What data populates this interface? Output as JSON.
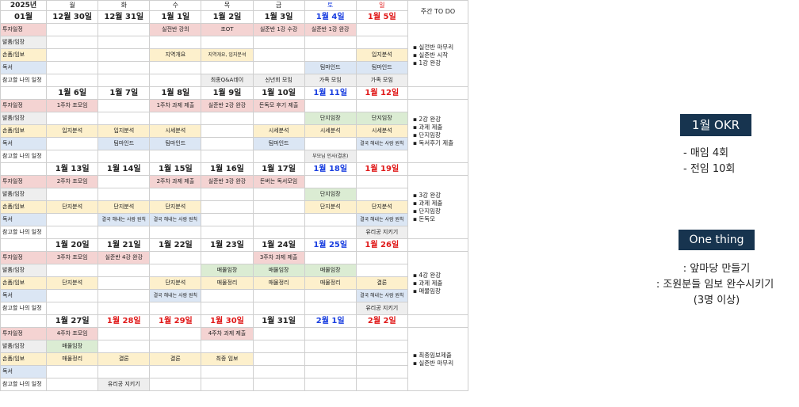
{
  "header": {
    "year": "2025년",
    "month": "01월",
    "weekdays": [
      "월",
      "화",
      "수",
      "목",
      "금",
      "토",
      "일"
    ],
    "todo_header": "주간 TO DO"
  },
  "row_labels": [
    "투자일정",
    "발품/임장",
    "손품/임보",
    "독서",
    "참고할 나의 일정"
  ],
  "weeks": [
    {
      "dates": [
        "12월 30일",
        "12월 31일",
        "1월 1일",
        "1월 2일",
        "1월 3일",
        "1월 4일",
        "1월 5일"
      ],
      "rows": [
        [
          "",
          "",
          "실전반 강의",
          "조OT",
          "실준반 1강 수강",
          "실준반 1강 완강",
          ""
        ],
        [
          "",
          "",
          "",
          "",
          "",
          "",
          ""
        ],
        [
          "",
          "",
          "지역개요",
          "지역개요, 입지분석",
          "",
          "",
          "입지분석"
        ],
        [
          "",
          "",
          "",
          "",
          "",
          "팀마인드",
          "팀마인드"
        ],
        [
          "",
          "",
          "",
          "최종Q&A데이",
          "신년회 모임",
          "가족 모임",
          "가족 모임"
        ]
      ],
      "todo": [
        "실전반 마무리",
        "실준반 시작",
        "1강 완강"
      ]
    },
    {
      "dates": [
        "1월 6일",
        "1월 7일",
        "1월 8일",
        "1월 9일",
        "1월 10일",
        "1월 11일",
        "1월 12일"
      ],
      "rows": [
        [
          "1주차 조모임",
          "",
          "1주차 과제 제출",
          "실준반 2강 완강",
          "돈독모 후기 제출",
          "",
          ""
        ],
        [
          "",
          "",
          "",
          "",
          "",
          "단지임장",
          "단지임장"
        ],
        [
          "입지분석",
          "입지분석",
          "시세분석",
          "",
          "시세분석",
          "시세분석",
          "시세분석"
        ],
        [
          "",
          "팀마인드",
          "팀마인드",
          "",
          "팀마인드",
          "",
          "결국 해내는 사람 원칙"
        ],
        [
          "",
          "",
          "",
          "",
          "",
          "부모님 인사(결혼)",
          ""
        ]
      ],
      "todo": [
        "2강 완강",
        "과제 제출",
        "단지임장",
        "독서후기 제출"
      ]
    },
    {
      "dates": [
        "1월 13일",
        "1월 14일",
        "1월 15일",
        "1월 16일",
        "1월 17일",
        "1월 18일",
        "1월 19일"
      ],
      "rows": [
        [
          "2주차 조모임",
          "",
          "2주차 과제 제출",
          "실준반 3강 완강",
          "돈버는 독서모임",
          "",
          ""
        ],
        [
          "",
          "",
          "",
          "",
          "",
          "단지임장",
          ""
        ],
        [
          "단지분석",
          "단지분석",
          "단지분석",
          "",
          "",
          "단지분석",
          "단지분석"
        ],
        [
          "",
          "결국 해내는 사람 원칙",
          "결국 해내는 사람 원칙",
          "",
          "",
          "",
          "결국 해내는 사람 원칙"
        ],
        [
          "",
          "",
          "",
          "",
          "",
          "",
          "유리공 지키기"
        ]
      ],
      "todo": [
        "3강 완강",
        "과제 제출",
        "단지임장",
        "돈독모"
      ]
    },
    {
      "dates": [
        "1월 20일",
        "1월 21일",
        "1월 22일",
        "1월 23일",
        "1월 24일",
        "1월 25일",
        "1월 26일"
      ],
      "rows": [
        [
          "3주차 조모임",
          "실준반 4강 완강",
          "",
          "",
          "3주차 과제 제출",
          "",
          ""
        ],
        [
          "",
          "",
          "",
          "매물임장",
          "매물임장",
          "매물임장",
          ""
        ],
        [
          "단지분석",
          "",
          "단지분석",
          "매물정리",
          "매물정리",
          "매물정리",
          "결론"
        ],
        [
          "",
          "",
          "결국 해내는 사람 원칙",
          "",
          "",
          "",
          "결국 해내는 사람 원칙"
        ],
        [
          "",
          "",
          "",
          "",
          "",
          "",
          "유리공 지키기"
        ]
      ],
      "todo": [
        "4강 완강",
        "과제 제출",
        "매물임장"
      ]
    },
    {
      "dates": [
        "1월 27일",
        "1월 28일",
        "1월 29일",
        "1월 30일",
        "1월 31일",
        "2월 1일",
        "2월 2일"
      ],
      "rows": [
        [
          "4주차 조모임",
          "",
          "",
          "4주차 과제 제출",
          "",
          "",
          ""
        ],
        [
          "매물임장",
          "",
          "",
          "",
          "",
          "",
          ""
        ],
        [
          "매물정리",
          "결론",
          "결론",
          "최종 임보",
          "",
          "",
          ""
        ],
        [
          "",
          "",
          "",
          "",
          "",
          "",
          ""
        ],
        [
          "",
          "유리공 지키기",
          "",
          "",
          "",
          "",
          ""
        ]
      ],
      "todo": [
        "최종임보제출",
        "실준반 마무리"
      ]
    }
  ],
  "okr": {
    "title": "1월 OKR",
    "items": [
      "- 매임 4회",
      "- 전임 10회"
    ]
  },
  "one_thing": {
    "title": "One thing",
    "items": [
      ": 앞마당 만들기",
      ": 조원분들 임보 완수시키기",
      "(3명 이상)"
    ]
  },
  "colors": {
    "schedule": "#f4d3d2",
    "visit": "#eeeeee",
    "report": "#fdf0cc",
    "reading": "#dbe6f4",
    "green": "#dbecd3",
    "badge": "#17344f",
    "saturday": "#1a3fe0",
    "sunday": "#e01a1a"
  }
}
